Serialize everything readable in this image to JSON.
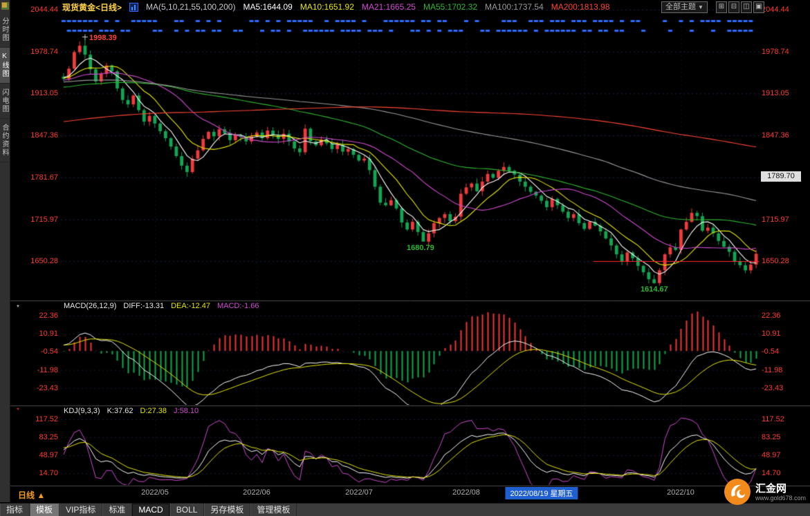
{
  "header": {
    "symbol_title": "现货黄金<日线>",
    "ma_label": "MA(5,10,21,55,100,200)",
    "ma_values": [
      {
        "label": "MA5:1644.09",
        "color": "#ffffff"
      },
      {
        "label": "MA10:1651.92",
        "color": "#e8e800"
      },
      {
        "label": "MA21:1665.25",
        "color": "#d24ad2"
      },
      {
        "label": "MA55:1702.32",
        "color": "#2eb82e"
      },
      {
        "label": "MA100:1737.54",
        "color": "#9a9a9a"
      },
      {
        "label": "MA200:1813.98",
        "color": "#ff4532"
      }
    ],
    "theme_label": "全部主题",
    "theme_caret": "▼",
    "window_buttons": [
      {
        "name": "tile-grid",
        "glyph": "⊞"
      },
      {
        "name": "tile-horizontal",
        "glyph": "⊟"
      },
      {
        "name": "tile-vertical",
        "glyph": "◫"
      },
      {
        "name": "maximize",
        "glyph": "▣"
      }
    ]
  },
  "sidebar": {
    "items": [
      {
        "label": "分时图",
        "selected": false
      },
      {
        "label": "K线图",
        "selected": true
      },
      {
        "label": "闪电图",
        "selected": false
      },
      {
        "label": "合约资料",
        "selected": false
      }
    ]
  },
  "price_axis": {
    "ticks": [
      "2044.44",
      "1978.74",
      "1913.05",
      "1847.36",
      "1781.67",
      "1715.97",
      "1650.28"
    ],
    "badge": "1789.70"
  },
  "macd_panel": {
    "title": "MACD(26,12,9)",
    "diff_label": "DIFF:-13.31",
    "dea_label": "DEA:-12.47",
    "macd_label": "MACD:-1.66",
    "marker": "*",
    "ticks": [
      "22.36",
      "10.91",
      "-0.54",
      "-11.98",
      "-23.43"
    ]
  },
  "kdj_panel": {
    "title": "KDJ(9,3,3)",
    "k_label": "K:37.62",
    "d_label": "D:27.38",
    "j_label": "J:58.10",
    "marker": "*",
    "ticks": [
      "117.52",
      "83.25",
      "48.97",
      "14.70"
    ]
  },
  "x_axis": {
    "labels": [
      "2022/05",
      "2022/06",
      "2022/07",
      "2022/08",
      "2022/10"
    ],
    "highlight": {
      "text": "2022/08/19 星期五"
    }
  },
  "annotations": {
    "peak": "1998.39",
    "low1": "1680.79",
    "low2": "1614.67"
  },
  "footer": {
    "period_label": "日线 ▲",
    "tabs": [
      {
        "label": "指标",
        "state": "normal"
      },
      {
        "label": "模板",
        "state": "selected"
      },
      {
        "label": "VIP指标",
        "state": "normal"
      },
      {
        "label": "标准",
        "state": "normal"
      },
      {
        "label": "MACD",
        "state": "pressed"
      },
      {
        "label": "BOLL",
        "state": "normal"
      },
      {
        "label": "另存模板",
        "state": "normal"
      },
      {
        "label": "管理模板",
        "state": "normal"
      }
    ],
    "logo_name": "汇金网",
    "logo_url": "www.gold678.com"
  },
  "chart_data": {
    "type": "candlestick",
    "title": "现货黄金 日线",
    "price_ticks": [
      2044.44,
      1978.74,
      1913.05,
      1847.36,
      1781.67,
      1715.97,
      1650.28
    ],
    "last_price_line": 1650.28,
    "visible_closes": [
      1936,
      1952,
      1978,
      1988,
      1974,
      1951,
      1932,
      1944,
      1957,
      1948,
      1921,
      1903,
      1896,
      1910,
      1887,
      1869,
      1878,
      1866,
      1854,
      1843,
      1830,
      1815,
      1800,
      1790,
      1811,
      1824,
      1842,
      1853,
      1846,
      1857,
      1851,
      1840,
      1848,
      1845,
      1838,
      1846,
      1852,
      1843,
      1855,
      1848,
      1842,
      1850,
      1838,
      1827,
      1821,
      1858,
      1838,
      1832,
      1841,
      1835,
      1826,
      1833,
      1822,
      1826,
      1817,
      1808,
      1811,
      1793,
      1767,
      1742,
      1738,
      1746,
      1733,
      1711,
      1700,
      1712,
      1696,
      1681,
      1694,
      1710,
      1718,
      1724,
      1713,
      1720,
      1756,
      1766,
      1772,
      1760,
      1775,
      1787,
      1781,
      1792,
      1798,
      1792,
      1786,
      1775,
      1767,
      1759,
      1753,
      1745,
      1735,
      1748,
      1738,
      1728,
      1718,
      1724,
      1710,
      1701,
      1712,
      1706,
      1697,
      1686,
      1675,
      1661,
      1650,
      1664,
      1655,
      1643,
      1633,
      1622,
      1616,
      1636,
      1661,
      1672,
      1668,
      1700,
      1712,
      1726,
      1721,
      1698,
      1703,
      1694,
      1682,
      1673,
      1665,
      1650,
      1644,
      1636,
      1645,
      1662
    ],
    "prehistory_anchors": [
      1765,
      1752,
      1775,
      1788,
      1780,
      1828,
      1880,
      1975,
      1925,
      1908,
      1928,
      1940
    ],
    "prehistory_step": 21,
    "special_highs": {
      "4": 1998.39
    },
    "special_lows": {
      "67": 1680.79,
      "110": 1614.67
    },
    "ma_series": [
      {
        "period": 5,
        "color": "#ffffff"
      },
      {
        "period": 10,
        "color": "#e8e800"
      },
      {
        "period": 21,
        "color": "#d24ad2"
      },
      {
        "period": 55,
        "color": "#2eb82e"
      },
      {
        "period": 100,
        "color": "#9a9a9a"
      },
      {
        "period": 200,
        "color": "#ff4532"
      }
    ],
    "macd": {
      "fast": 12,
      "slow": 26,
      "signal": 9,
      "diff": -13.31,
      "dea": -12.47,
      "macd": -1.66,
      "ticks": [
        22.36,
        10.91,
        -0.54,
        -11.98,
        -23.43
      ],
      "colors": {
        "diff": "#ffffff",
        "dea": "#e8e800",
        "pos": "#f23535",
        "neg": "#0fa84d"
      }
    },
    "kdj": {
      "n": 9,
      "k_smooth": 3,
      "d_smooth": 3,
      "last_k": 37.62,
      "last_d": 27.38,
      "last_j": 58.1,
      "ticks": [
        117.52,
        83.25,
        48.97,
        14.7
      ],
      "colors": {
        "k": "#ffffff",
        "d": "#e8e800",
        "j": "#d24ad2"
      }
    },
    "month_marks": [
      17,
      36,
      55,
      75,
      97,
      115
    ],
    "x_label_indices": [
      17,
      36,
      55,
      75,
      115
    ],
    "highlight_index": 89,
    "candle_colors": {
      "up": "#ee3b3b",
      "down": "#12a552"
    },
    "annotation_points": {
      "peak_idx": 4,
      "peak_price": 1998.39,
      "low1_idx": 67,
      "low1_price": 1680.79,
      "low2_idx": 110,
      "low2_price": 1614.67
    }
  }
}
